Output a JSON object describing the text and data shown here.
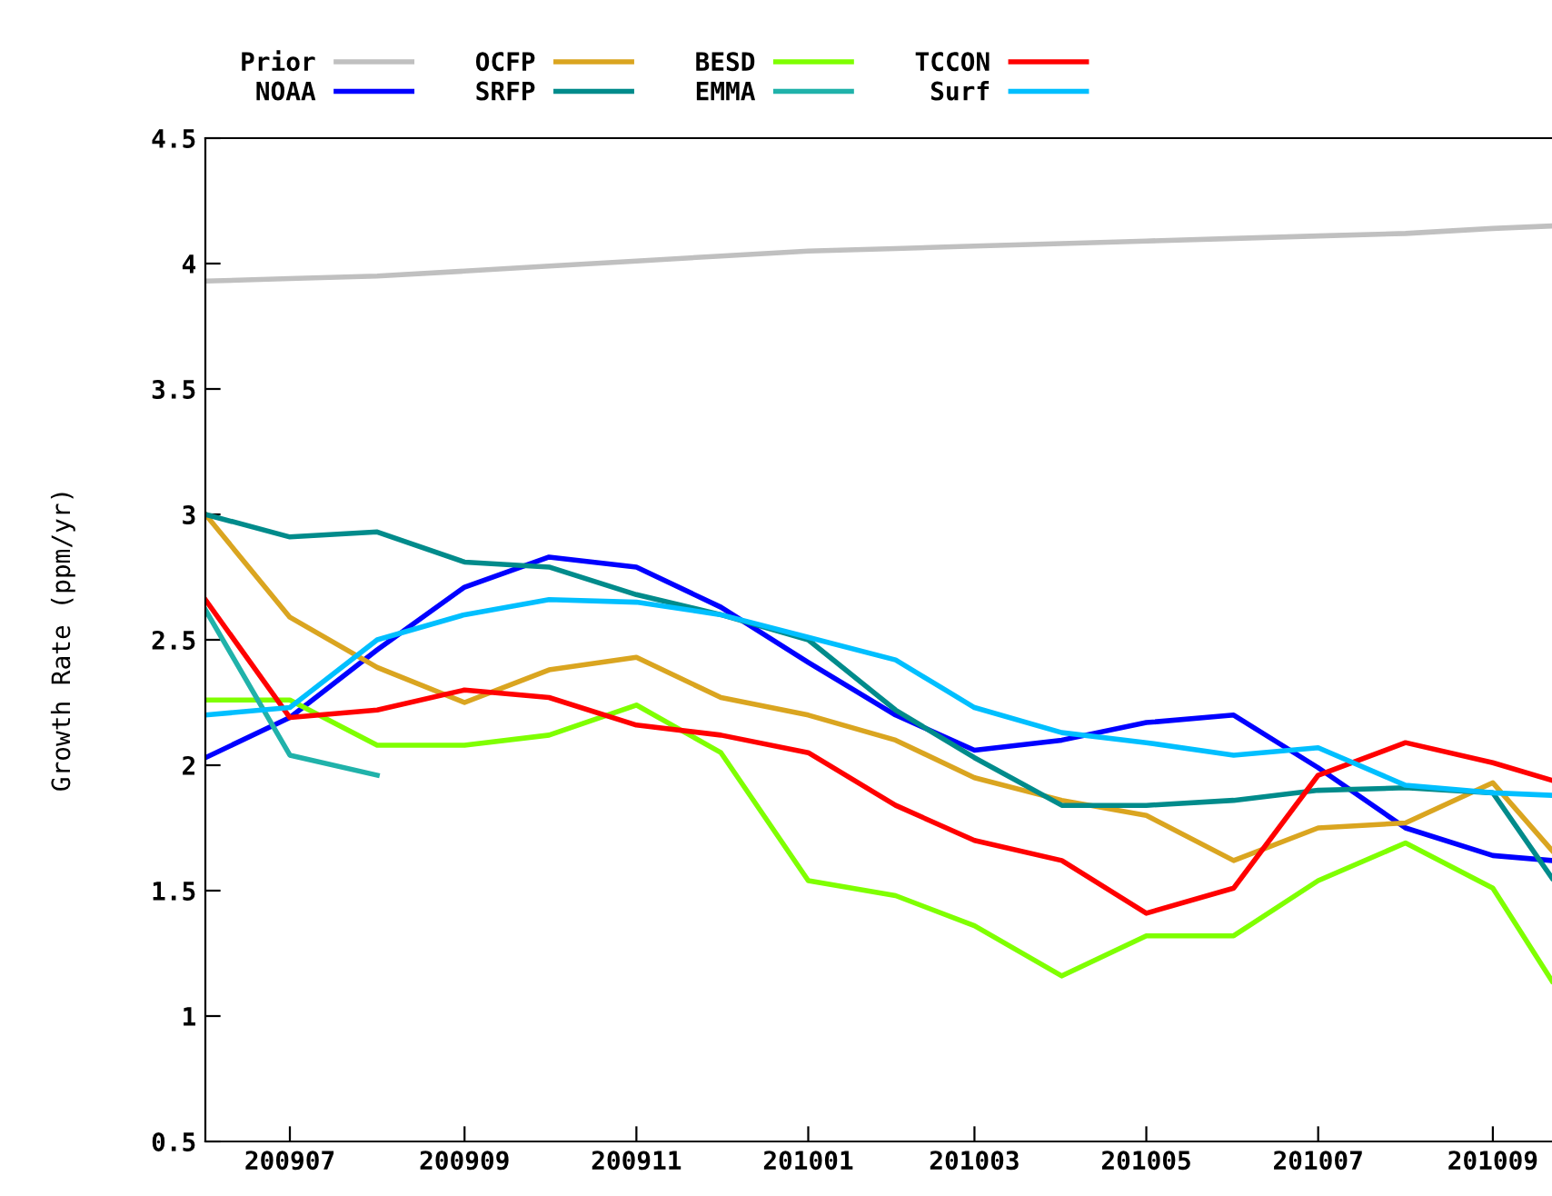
{
  "chart_data": {
    "type": "line",
    "ylabel": "Growth Rate (ppm/yr)",
    "x": [
      "2009-06",
      "2009-07",
      "2009-08",
      "2009-09",
      "2009-10",
      "2009-11",
      "2009-12",
      "2010-01",
      "2010-02",
      "2010-03",
      "2010-04",
      "2010-05",
      "2010-06",
      "2010-07",
      "2010-08",
      "2010-09",
      "2010-09-22"
    ],
    "series": [
      {
        "name": "Prior",
        "color": "#c0c0c0",
        "values": [
          3.93,
          3.94,
          3.95,
          3.97,
          3.99,
          4.01,
          4.03,
          4.05,
          4.06,
          4.07,
          4.08,
          4.09,
          4.1,
          4.11,
          4.12,
          4.14,
          4.15
        ]
      },
      {
        "name": "NOAA",
        "color": "#0000ff",
        "values": [
          2.03,
          2.19,
          2.46,
          2.71,
          2.83,
          2.79,
          2.63,
          2.41,
          2.2,
          2.06,
          2.1,
          2.17,
          2.2,
          1.99,
          1.75,
          1.64,
          1.62
        ]
      },
      {
        "name": "OCFP",
        "color": "#daa520",
        "values": [
          3.0,
          2.59,
          2.39,
          2.25,
          2.38,
          2.43,
          2.27,
          2.2,
          2.1,
          1.95,
          1.86,
          1.8,
          1.62,
          1.75,
          1.77,
          1.93,
          1.66
        ]
      },
      {
        "name": "SRFP",
        "color": "#008b8b",
        "values": [
          3.0,
          2.91,
          2.93,
          2.81,
          2.79,
          2.68,
          2.6,
          2.5,
          2.22,
          2.03,
          1.84,
          1.84,
          1.86,
          1.9,
          1.91,
          1.89,
          1.55
        ]
      },
      {
        "name": "BESD",
        "color": "#7fff00",
        "values": [
          2.26,
          2.26,
          2.08,
          2.08,
          2.12,
          2.24,
          2.05,
          1.54,
          1.48,
          1.36,
          1.16,
          1.32,
          1.32,
          1.54,
          1.69,
          1.51,
          1.14
        ]
      },
      {
        "name": "EMMA",
        "color": "#20b2aa",
        "values": [
          2.62,
          2.04,
          1.96,
          null,
          null,
          null,
          null,
          null,
          null,
          null,
          null,
          null,
          null,
          null,
          null,
          null,
          null
        ]
      },
      {
        "name": "TCCON",
        "color": "#ff0000",
        "values": [
          2.66,
          2.19,
          2.22,
          2.3,
          2.27,
          2.16,
          2.12,
          2.05,
          1.84,
          1.7,
          1.62,
          1.41,
          1.51,
          1.96,
          2.09,
          2.01,
          1.94
        ]
      },
      {
        "name": "Surf",
        "color": "#00bfff",
        "values": [
          2.2,
          2.23,
          2.5,
          2.6,
          2.66,
          2.65,
          2.6,
          2.51,
          2.42,
          2.23,
          2.13,
          2.09,
          2.04,
          2.07,
          1.92,
          1.89,
          1.88
        ]
      }
    ],
    "xlim": [
      "2009-06-01",
      "2010-09-22"
    ],
    "xticks": [
      {
        "value": "2009-07",
        "label": "200907"
      },
      {
        "value": "2009-09",
        "label": "200909"
      },
      {
        "value": "2009-11",
        "label": "200911"
      },
      {
        "value": "2010-01",
        "label": "201001"
      },
      {
        "value": "2010-03",
        "label": "201003"
      },
      {
        "value": "2010-05",
        "label": "201005"
      },
      {
        "value": "2010-07",
        "label": "201007"
      },
      {
        "value": "2010-09",
        "label": "201009"
      }
    ],
    "ylim": [
      0.5,
      4.5
    ],
    "yticks": [
      {
        "value": 0.5,
        "label": "0.5"
      },
      1,
      1.5,
      2,
      2.5,
      3,
      3.5,
      4,
      4.5
    ],
    "legend": "top",
    "grid": false,
    "marker": "none",
    "line_style": "solid"
  }
}
